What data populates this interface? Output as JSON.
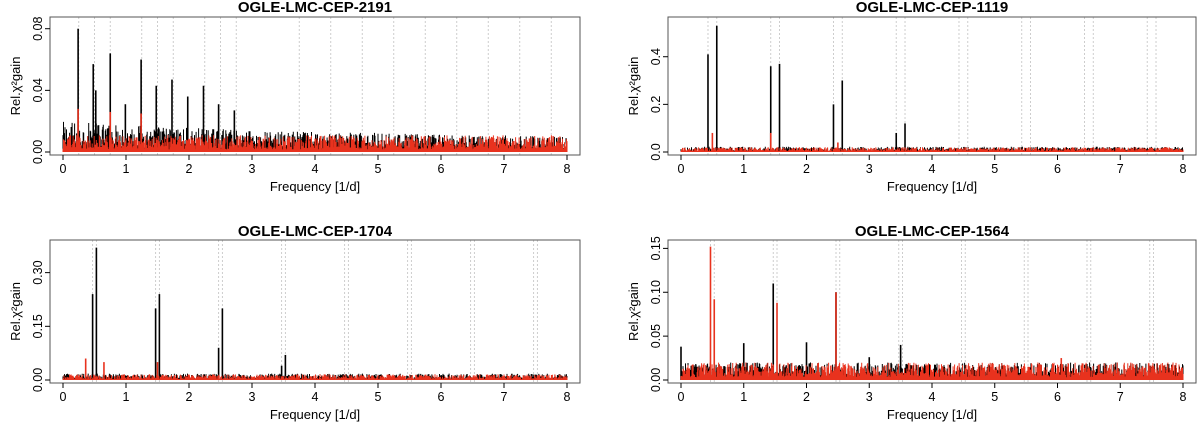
{
  "chart_data": [
    {
      "type": "line",
      "title": "OGLE-LMC-CEP-2191",
      "xlabel": "Frequency [1/d]",
      "ylabel": "Rel.χ²gain",
      "xlim": [
        0,
        8
      ],
      "ylim": [
        0,
        0.085
      ],
      "xticks": [
        "0",
        "1",
        "2",
        "3",
        "4",
        "5",
        "6",
        "7",
        "8"
      ],
      "yticks": [
        "0.00",
        "0.04",
        "0.08"
      ],
      "grid_lines_x": [
        0.25,
        0.5,
        0.75,
        1.25,
        1.5,
        1.75,
        2.25,
        2.5,
        2.75,
        3.75,
        4.25,
        4.75,
        5.25,
        5.75,
        6.25,
        6.75,
        7.25,
        7.75
      ],
      "noise": {
        "black": 0.012,
        "red": 0.011,
        "black_high": [
          [
            0,
            0.02
          ],
          [
            3,
            0.014
          ],
          [
            8,
            0.01
          ]
        ]
      },
      "series": [
        {
          "color": "#000000",
          "peaks": [
            [
              0.24,
              0.08
            ],
            [
              0.48,
              0.057
            ],
            [
              0.52,
              0.04
            ],
            [
              0.75,
              0.064
            ],
            [
              0.99,
              0.031
            ],
            [
              1.24,
              0.06
            ],
            [
              1.48,
              0.043
            ],
            [
              1.73,
              0.047
            ],
            [
              1.98,
              0.036
            ],
            [
              2.23,
              0.043
            ],
            [
              2.47,
              0.031
            ],
            [
              2.72,
              0.027
            ]
          ]
        },
        {
          "color": "#e8321e",
          "peaks": [
            [
              0.24,
              0.028
            ],
            [
              0.75,
              0.026
            ],
            [
              1.24,
              0.025
            ]
          ]
        }
      ]
    },
    {
      "type": "line",
      "title": "OGLE-LMC-CEP-1119",
      "xlabel": "Frequency [1/d]",
      "ylabel": "Rel.χ²gain",
      "xlim": [
        0,
        8
      ],
      "ylim": [
        0,
        0.55
      ],
      "xticks": [
        "0",
        "1",
        "2",
        "3",
        "4",
        "5",
        "6",
        "7",
        "8"
      ],
      "yticks": [
        "0.0",
        "0.2",
        "0.4"
      ],
      "grid_lines_x": [
        0.43,
        0.57,
        1.43,
        1.57,
        2.43,
        2.57,
        3.43,
        3.57,
        4.43,
        4.57,
        5.43,
        5.57,
        6.43,
        6.57,
        7.43,
        7.57
      ],
      "noise": {
        "black": 0.022,
        "red": 0.02
      },
      "series": [
        {
          "color": "#000000",
          "peaks": [
            [
              0.43,
              0.41
            ],
            [
              0.57,
              0.53
            ],
            [
              1.43,
              0.36
            ],
            [
              1.57,
              0.37
            ],
            [
              2.43,
              0.2
            ],
            [
              2.57,
              0.3
            ],
            [
              3.43,
              0.08
            ],
            [
              3.57,
              0.12
            ]
          ]
        },
        {
          "color": "#e8321e",
          "peaks": [
            [
              0.5,
              0.08
            ],
            [
              1.43,
              0.08
            ],
            [
              2.5,
              0.04
            ]
          ]
        }
      ]
    },
    {
      "type": "line",
      "title": "OGLE-LMC-CEP-1704",
      "xlabel": "Frequency [1/d]",
      "ylabel": "Rel.χ²gain",
      "xlim": [
        0,
        8
      ],
      "ylim": [
        0,
        0.38
      ],
      "xticks": [
        "0",
        "1",
        "2",
        "3",
        "4",
        "5",
        "6",
        "7",
        "8"
      ],
      "yticks": [
        "0.00",
        "0.15",
        "0.30"
      ],
      "grid_lines_x": [
        0.47,
        0.53,
        1.47,
        1.53,
        2.47,
        2.53,
        3.47,
        3.53,
        4.47,
        4.53,
        5.47,
        5.53,
        6.47,
        6.53,
        7.47,
        7.53
      ],
      "noise": {
        "black": 0.018,
        "red": 0.016
      },
      "series": [
        {
          "color": "#000000",
          "peaks": [
            [
              0.47,
              0.24
            ],
            [
              0.53,
              0.37
            ],
            [
              1.47,
              0.2
            ],
            [
              1.53,
              0.24
            ],
            [
              2.47,
              0.09
            ],
            [
              2.53,
              0.2
            ],
            [
              3.47,
              0.04
            ],
            [
              3.53,
              0.07
            ]
          ]
        },
        {
          "color": "#e8321e",
          "peaks": [
            [
              0.36,
              0.06
            ],
            [
              0.65,
              0.05
            ],
            [
              1.5,
              0.05
            ]
          ]
        }
      ]
    },
    {
      "type": "line",
      "title": "OGLE-LMC-CEP-1564",
      "xlabel": "Frequency [1/d]",
      "ylabel": "Rel.χ²gain",
      "xlim": [
        0,
        8
      ],
      "ylim": [
        0,
        0.155
      ],
      "xticks": [
        "0",
        "1",
        "2",
        "3",
        "4",
        "5",
        "6",
        "7",
        "8"
      ],
      "yticks": [
        "0.00",
        "0.05",
        "0.10",
        "0.15"
      ],
      "grid_lines_x": [
        0.47,
        0.53,
        1.47,
        1.53,
        2.47,
        2.53,
        3.47,
        3.53,
        4.47,
        4.53,
        5.47,
        5.53,
        6.47,
        6.53,
        7.47,
        7.53
      ],
      "noise": {
        "black": 0.02,
        "red": 0.02
      },
      "series": [
        {
          "color": "#000000",
          "peaks": [
            [
              0.0,
              0.038
            ],
            [
              1.0,
              0.042
            ],
            [
              1.47,
              0.11
            ],
            [
              2.0,
              0.043
            ],
            [
              2.47,
              0.1
            ],
            [
              3.0,
              0.026
            ],
            [
              3.5,
              0.04
            ]
          ]
        },
        {
          "color": "#e8321e",
          "peaks": [
            [
              0.47,
              0.152
            ],
            [
              0.53,
              0.092
            ],
            [
              1.53,
              0.088
            ],
            [
              2.47,
              0.1
            ],
            [
              6.06,
              0.025
            ]
          ]
        }
      ]
    }
  ]
}
